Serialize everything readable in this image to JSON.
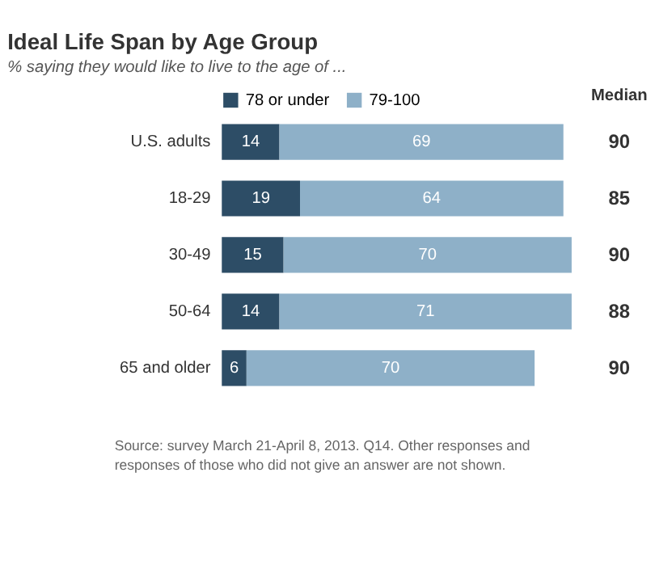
{
  "chart_data": {
    "type": "bar",
    "orientation": "horizontal",
    "stacked": true,
    "data_labels": true,
    "legend": "top",
    "grid": false,
    "title": "Ideal Life Span by Age Group",
    "subtitle": "% saying they would like to live to the age of ...",
    "categories": [
      "U.S. adults",
      "18-29",
      "30-49",
      "50-64",
      "65 and older"
    ],
    "series": [
      {
        "name": "78 or under",
        "color": "#2d4d66",
        "values": [
          14,
          19,
          15,
          14,
          6
        ]
      },
      {
        "name": "79-100",
        "color": "#8eb0c8",
        "values": [
          69,
          64,
          70,
          71,
          70
        ]
      }
    ],
    "annotations": [
      "Median",
      "90",
      "85",
      "90",
      "88",
      "90",
      "Source: survey March 21-April 8, 2013. Q14. Other responses and responses of those who did not give an answer are not shown."
    ]
  }
}
